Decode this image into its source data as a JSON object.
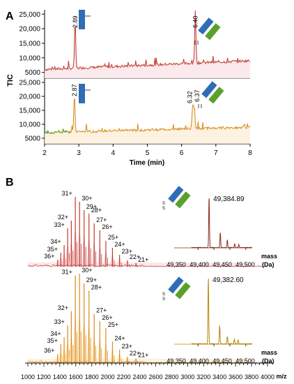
{
  "panels": {
    "a": "A",
    "b": "B"
  },
  "chart_data": [
    {
      "type": "line",
      "panel": "A",
      "ylabel": "TIC",
      "xlabel": "Time (min)",
      "xlim": [
        2,
        8
      ],
      "xticks": [
        "2",
        "3",
        "4",
        "5",
        "6",
        "7",
        "8"
      ],
      "yticks": [
        "5000",
        "10,000",
        "15,000",
        "20,000",
        "25,000"
      ],
      "color_top": "#c0392b",
      "color_bottom": "#d88a1a",
      "color_bottom_start": "#5aa02c",
      "top": {
        "ylim": [
          3000,
          26500
        ],
        "baseline_x": [
          2.0,
          8.0
        ],
        "baseline_y": [
          6000,
          9000
        ],
        "peaks": [
          {
            "x": 2.89,
            "y": 22800,
            "label": "2.89"
          },
          {
            "x": 6.4,
            "y": 27000,
            "label": "6.40"
          }
        ]
      },
      "bottom": {
        "ylim": [
          3000,
          26500
        ],
        "baseline_x": [
          2.0,
          8.0
        ],
        "baseline_y": [
          7000,
          9000
        ],
        "peaks": [
          {
            "x": 2.87,
            "y": 20800,
            "label": "2.87"
          },
          {
            "x": 6.32,
            "y": 16500,
            "label": "6.32"
          },
          {
            "x": 6.37,
            "y": 17000,
            "label": "6.37"
          }
        ]
      }
    },
    {
      "type": "spectrum",
      "panel": "B",
      "xlabel": "m/z",
      "xlim": [
        1000,
        4000
      ],
      "xticks": [
        "1000",
        "1200",
        "1400",
        "1600",
        "1800",
        "2000",
        "2200",
        "2400",
        "2600",
        "2800",
        "3000",
        "3200",
        "3400",
        "3600",
        "3800",
        "4000"
      ],
      "top": {
        "charge_states": [
          {
            "label": "36+",
            "mz": 1373,
            "rel": 0.1
          },
          {
            "label": "35+",
            "mz": 1412,
            "rel": 0.2
          },
          {
            "label": "34+",
            "mz": 1454,
            "rel": 0.31
          },
          {
            "label": "33+",
            "mz": 1498,
            "rel": 0.55
          },
          {
            "label": "32+",
            "mz": 1544,
            "rel": 0.66
          },
          {
            "label": "31+",
            "mz": 1594,
            "rel": 1.0
          },
          {
            "label": "30+",
            "mz": 1647,
            "rel": 0.93
          },
          {
            "label": "29+",
            "mz": 1704,
            "rel": 0.81
          },
          {
            "label": "28+",
            "mz": 1765,
            "rel": 0.76
          },
          {
            "label": "27+",
            "mz": 1830,
            "rel": 0.62
          },
          {
            "label": "26+",
            "mz": 1901,
            "rel": 0.52
          },
          {
            "label": "25+",
            "mz": 1976,
            "rel": 0.37
          },
          {
            "label": "24+",
            "mz": 2059,
            "rel": 0.27
          },
          {
            "label": "23+",
            "mz": 2148,
            "rel": 0.17
          },
          {
            "label": "22+",
            "mz": 2246,
            "rel": 0.09
          },
          {
            "label": "21+",
            "mz": 2353,
            "rel": 0.05
          }
        ],
        "deconvolution": {
          "mass_label": "mass",
          "unit_label": "(Da)",
          "xlim": [
            49330,
            49520
          ],
          "xticks": [
            "49,350",
            "49,400",
            "49,450",
            "49,500"
          ],
          "peaks": [
            {
              "x": 49384.89,
              "rel": 1.0,
              "label": "49,384.89"
            },
            {
              "x": 49420,
              "rel": 0.3
            },
            {
              "x": 49442,
              "rel": 0.15
            },
            {
              "x": 49465,
              "rel": 0.07
            },
            {
              "x": 49478,
              "rel": 0.06
            }
          ]
        }
      },
      "bottom": {
        "charge_states": [
          {
            "label": "36+",
            "mz": 1373,
            "rel": 0.1
          },
          {
            "label": "35+",
            "mz": 1412,
            "rel": 0.21
          },
          {
            "label": "34+",
            "mz": 1454,
            "rel": 0.29
          },
          {
            "label": "33+",
            "mz": 1498,
            "rel": 0.42
          },
          {
            "label": "32+",
            "mz": 1544,
            "rel": 0.58
          },
          {
            "label": "31+",
            "mz": 1594,
            "rel": 0.98
          },
          {
            "label": "30+",
            "mz": 1647,
            "rel": 1.0
          },
          {
            "label": "29+",
            "mz": 1704,
            "rel": 0.89
          },
          {
            "label": "28+",
            "mz": 1765,
            "rel": 0.81
          },
          {
            "label": "27+",
            "mz": 1830,
            "rel": 0.55
          },
          {
            "label": "26+",
            "mz": 1901,
            "rel": 0.47
          },
          {
            "label": "25+",
            "mz": 1976,
            "rel": 0.39
          },
          {
            "label": "24+",
            "mz": 2059,
            "rel": 0.24
          },
          {
            "label": "23+",
            "mz": 2148,
            "rel": 0.15
          },
          {
            "label": "22+",
            "mz": 2246,
            "rel": 0.07
          },
          {
            "label": "21+",
            "mz": 2353,
            "rel": 0.05
          }
        ],
        "deconvolution": {
          "mass_label": "mass",
          "unit_label": "(Da)",
          "xlim": [
            49330,
            49520
          ],
          "xticks": [
            "49,350",
            "49,400",
            "49,450",
            "49,500"
          ],
          "peaks": [
            {
              "x": 49382.6,
              "rel": 1.0,
              "label": "49,382.60"
            },
            {
              "x": 49418,
              "rel": 0.28
            },
            {
              "x": 49442,
              "rel": 0.11
            },
            {
              "x": 49464,
              "rel": 0.07
            },
            {
              "x": 49476,
              "rel": 0.06
            }
          ]
        }
      }
    }
  ]
}
